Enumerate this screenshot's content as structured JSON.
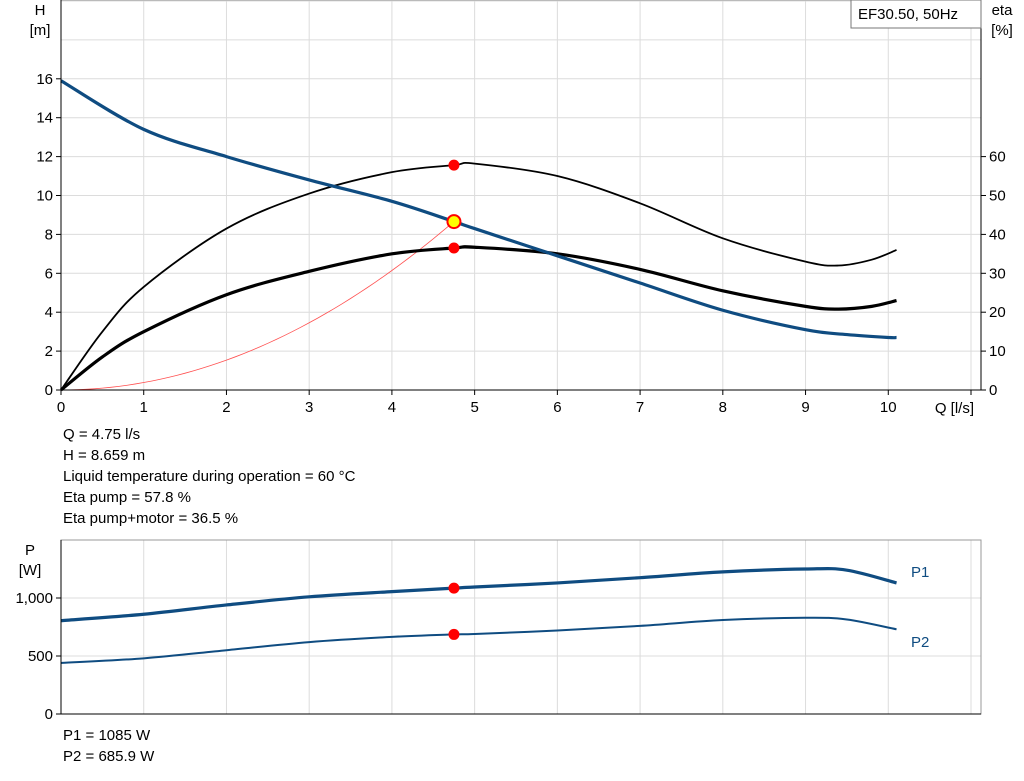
{
  "chart_data": [
    {
      "type": "line",
      "legend_box": "EF30.50, 50Hz",
      "xlabel": "Q [l/s]",
      "ylabel": "H",
      "ylabel_unit": "[m]",
      "y2label": "eta",
      "y2label_unit": "[%]",
      "xlim": [
        0,
        11
      ],
      "ylim": [
        0,
        20
      ],
      "y2lim": [
        0,
        100
      ],
      "xticks": [
        0,
        1,
        2,
        3,
        4,
        5,
        6,
        7,
        8,
        9,
        10
      ],
      "yticks": [
        0,
        2,
        4,
        6,
        8,
        10,
        12,
        14,
        16
      ],
      "y2ticks": [
        0,
        10,
        20,
        30,
        40,
        50,
        60
      ],
      "grid": true,
      "colors": {
        "head": "#0f4c81",
        "eta": "#000000",
        "system": "#ff5050",
        "point": "#ff0000",
        "duty": "#ffff00"
      },
      "series": [
        {
          "id": "head",
          "axis": "H",
          "x": [
            0,
            1,
            2,
            3,
            4,
            4.75,
            5,
            6,
            7,
            8,
            9,
            9.5,
            10,
            10.1
          ],
          "y": [
            15.9,
            13.4,
            12.0,
            10.8,
            9.7,
            8.66,
            8.3,
            6.9,
            5.5,
            4.1,
            3.1,
            2.85,
            2.7,
            2.7
          ]
        },
        {
          "id": "eta_pump",
          "axis": "eta",
          "x": [
            0,
            0.5,
            1,
            2,
            3,
            4,
            4.75,
            5,
            6,
            7,
            8,
            9,
            9.4,
            9.8,
            10.1
          ],
          "y": [
            0,
            15,
            26.5,
            41.5,
            50.5,
            56,
            57.8,
            58.2,
            55,
            48,
            39,
            33,
            32,
            33.5,
            36
          ]
        },
        {
          "id": "eta_total",
          "axis": "eta",
          "x": [
            0,
            0.5,
            1,
            2,
            3,
            4,
            4.75,
            5,
            6,
            7,
            8,
            9,
            9.4,
            9.8,
            10.1
          ],
          "y": [
            0,
            8.5,
            15,
            24.5,
            30.5,
            35,
            36.5,
            36.7,
            35,
            31,
            25.5,
            21.5,
            20.8,
            21.5,
            23
          ]
        },
        {
          "id": "system",
          "axis": "H",
          "equation": "H = 0.384 Q^2",
          "x_range": [
            0,
            4.8
          ]
        }
      ],
      "duty_point": {
        "Q": 4.75,
        "H": 8.659,
        "eta_pump": 57.8,
        "eta_total": 36.5
      }
    },
    {
      "type": "line",
      "ylabel": "P",
      "ylabel_unit": "[W]",
      "xlim": [
        0,
        11
      ],
      "ylim": [
        0,
        1500
      ],
      "yticks": [
        0,
        500,
        1000
      ],
      "ytick_labels": [
        "0",
        "500",
        "1,000"
      ],
      "grid": true,
      "series": [
        {
          "name": "P1",
          "x": [
            0,
            1,
            2,
            3,
            4,
            4.75,
            5,
            6,
            7,
            8,
            9,
            9.5,
            10.1
          ],
          "y": [
            805,
            860,
            940,
            1010,
            1055,
            1085,
            1095,
            1130,
            1175,
            1225,
            1250,
            1240,
            1130
          ]
        },
        {
          "name": "P2",
          "x": [
            0,
            1,
            2,
            3,
            4,
            4.75,
            5,
            6,
            7,
            8,
            9,
            9.5,
            10.1
          ],
          "y": [
            440,
            480,
            550,
            620,
            665,
            686,
            690,
            720,
            760,
            810,
            830,
            815,
            730
          ]
        }
      ],
      "duty_point": {
        "Q": 4.75,
        "P1": 1085,
        "P2": 685.9
      }
    }
  ],
  "info": {
    "q": "Q = 4.75 l/s",
    "h": "H = 8.659 m",
    "temp": "Liquid temperature during operation = 60 °C",
    "eta_pump": "Eta pump = 57.8 %",
    "eta_total": "Eta pump+motor = 36.5 %",
    "p1": "P1 = 1085 W",
    "p2": "P2 = 685.9 W"
  }
}
